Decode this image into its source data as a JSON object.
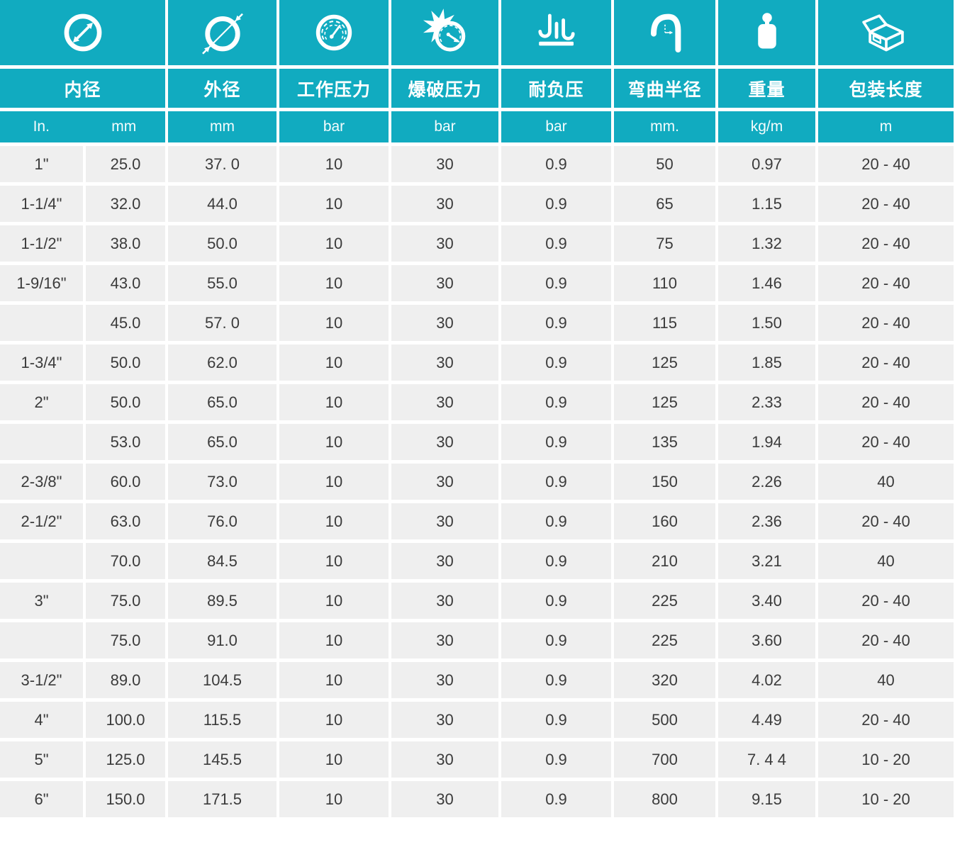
{
  "table": {
    "title_visible": false,
    "columns": [
      {
        "key": "inner_diameter",
        "label": "内径",
        "icon": "inner-diameter-icon",
        "units": [
          "In.",
          "mm"
        ]
      },
      {
        "key": "outer_diameter",
        "label": "外径",
        "icon": "outer-diameter-icon",
        "unit": "mm"
      },
      {
        "key": "working_pressure",
        "label": "工作压力",
        "icon": "working-pressure-gauge-icon",
        "unit": "bar"
      },
      {
        "key": "burst_pressure",
        "label": "爆破压力",
        "icon": "burst-pressure-icon",
        "unit": "bar"
      },
      {
        "key": "vacuum_resistance",
        "label": "耐负压",
        "icon": "vacuum-icon",
        "unit": "bar"
      },
      {
        "key": "bend_radius",
        "label": "弯曲半径",
        "icon": "bend-radius-icon",
        "unit": "mm."
      },
      {
        "key": "weight",
        "label": "重量",
        "icon": "weight-icon",
        "unit": "kg/m"
      },
      {
        "key": "packing_length",
        "label": "包装长度",
        "icon": "package-icon",
        "unit": "m"
      }
    ],
    "rows": [
      [
        "1\"",
        "25.0",
        "37. 0",
        "10",
        "30",
        "0.9",
        "50",
        "0.97",
        "20 - 40"
      ],
      [
        "1-1/4\"",
        "32.0",
        "44.0",
        "10",
        "30",
        "0.9",
        "65",
        "1.15",
        "20 - 40"
      ],
      [
        "1-1/2\"",
        "38.0",
        "50.0",
        "10",
        "30",
        "0.9",
        "75",
        "1.32",
        "20 - 40"
      ],
      [
        "1-9/16\"",
        "43.0",
        "55.0",
        "10",
        "30",
        "0.9",
        "110",
        "1.46",
        "20 - 40"
      ],
      [
        "",
        "45.0",
        "57. 0",
        "10",
        "30",
        "0.9",
        "115",
        "1.50",
        "20 - 40"
      ],
      [
        "1-3/4\"",
        "50.0",
        "62.0",
        "10",
        "30",
        "0.9",
        "125",
        "1.85",
        "20 - 40"
      ],
      [
        "2\"",
        "50.0",
        "65.0",
        "10",
        "30",
        "0.9",
        "125",
        "2.33",
        "20 - 40"
      ],
      [
        "",
        "53.0",
        "65.0",
        "10",
        "30",
        "0.9",
        "135",
        "1.94",
        "20 - 40"
      ],
      [
        "2-3/8\"",
        "60.0",
        "73.0",
        "10",
        "30",
        "0.9",
        "150",
        "2.26",
        "40"
      ],
      [
        "2-1/2\"",
        "63.0",
        "76.0",
        "10",
        "30",
        "0.9",
        "160",
        "2.36",
        "20 - 40"
      ],
      [
        "",
        "70.0",
        "84.5",
        "10",
        "30",
        "0.9",
        "210",
        "3.21",
        "40"
      ],
      [
        "3\"",
        "75.0",
        "89.5",
        "10",
        "30",
        "0.9",
        "225",
        "3.40",
        "20 - 40"
      ],
      [
        "",
        "75.0",
        "91.0",
        "10",
        "30",
        "0.9",
        "225",
        "3.60",
        "20 - 40"
      ],
      [
        "3-1/2\"",
        "89.0",
        "104.5",
        "10",
        "30",
        "0.9",
        "320",
        "4.02",
        "40"
      ],
      [
        "4\"",
        "100.0",
        "115.5",
        "10",
        "30",
        "0.9",
        "500",
        "4.49",
        "20 - 40"
      ],
      [
        "5\"",
        "125.0",
        "145.5",
        "10",
        "30",
        "0.9",
        "700",
        "7. 4 4",
        "10 - 20"
      ],
      [
        "6\"",
        "150.0",
        "171.5",
        "10",
        "30",
        "0.9",
        "800",
        "9.15",
        "10 - 20"
      ]
    ],
    "colors": {
      "header_teal": "#11abc0",
      "row_background": "#efefef",
      "cell_text": "#3b3b3b",
      "header_text": "#ffffff",
      "grid_gap": "#ffffff"
    }
  }
}
